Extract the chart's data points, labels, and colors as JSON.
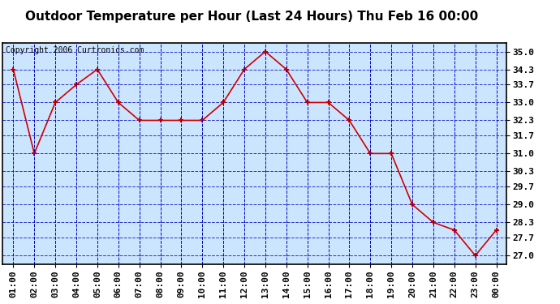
{
  "title": "Outdoor Temperature per Hour (Last 24 Hours) Thu Feb 16 00:00",
  "copyright": "Copyright 2006 Curtronics.com",
  "x_labels": [
    "01:00",
    "02:00",
    "03:00",
    "04:00",
    "05:00",
    "06:00",
    "07:00",
    "08:00",
    "09:00",
    "10:00",
    "11:00",
    "12:00",
    "13:00",
    "14:00",
    "15:00",
    "16:00",
    "17:00",
    "18:00",
    "19:00",
    "20:00",
    "21:00",
    "22:00",
    "23:00",
    "00:00"
  ],
  "y_values": [
    34.3,
    31.0,
    33.0,
    33.7,
    34.3,
    33.0,
    32.3,
    32.3,
    32.3,
    32.3,
    33.0,
    34.3,
    35.0,
    34.3,
    33.0,
    33.0,
    32.3,
    31.0,
    31.0,
    29.0,
    28.3,
    28.0,
    27.0,
    28.0
  ],
  "y_ticks": [
    27.0,
    27.7,
    28.3,
    29.0,
    29.7,
    30.3,
    31.0,
    31.7,
    32.3,
    33.0,
    33.7,
    34.3,
    35.0
  ],
  "ylim": [
    26.65,
    35.35
  ],
  "line_color": "#cc0000",
  "marker_color": "#cc0000",
  "bg_color": "#cce5ff",
  "fig_bg": "#ffffff",
  "grid_color": "#0000bb",
  "title_color": "#000000",
  "title_fontsize": 11,
  "copyright_fontsize": 7,
  "tick_fontsize": 8
}
